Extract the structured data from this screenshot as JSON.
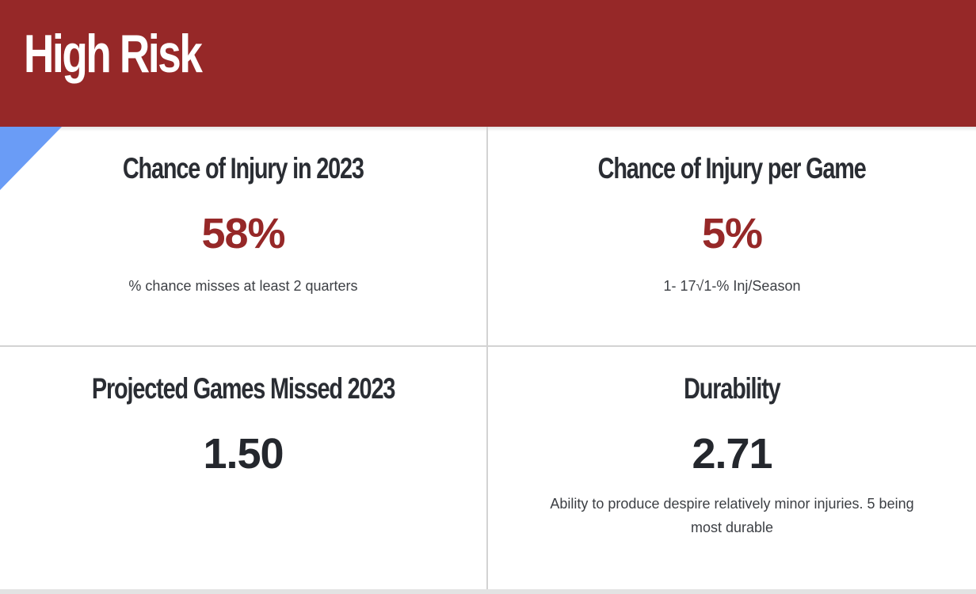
{
  "header": {
    "title": "High Risk",
    "background_color": "#962828"
  },
  "metrics": [
    {
      "title": "Chance of Injury in 2023",
      "value": "58%",
      "description": "% chance misses at least 2 quarters",
      "value_color": "#962828"
    },
    {
      "title": "Chance of Injury per Game",
      "value": "5%",
      "description": "1- 17√1-% Inj/Season",
      "value_color": "#962828"
    },
    {
      "title": "Projected Games Missed 2023",
      "value": "1.50",
      "description": "",
      "value_color": "#24272d"
    },
    {
      "title": "Durability",
      "value": "2.71",
      "description": "Ability to produce despire relatively minor injuries. 5 being most durable",
      "value_color": "#24272d"
    }
  ],
  "accent_color": "#6a9cf6"
}
